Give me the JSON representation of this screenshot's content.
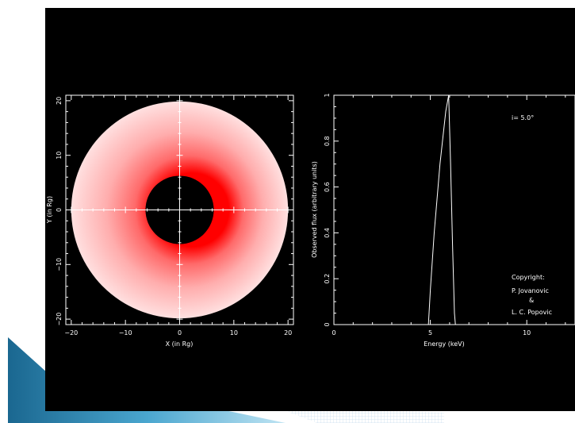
{
  "theme": {
    "background": "#000000",
    "foreground": "#ffffff",
    "disk_outer_color": "#ffe0e0",
    "disk_hot_color": "#ff0000",
    "slide_accent_dark": "#1f6f99",
    "slide_accent_light": "#9fd3ea"
  },
  "chart_data": [
    {
      "type": "heatmap",
      "description_kind": "accretion-disk-image",
      "xlabel": "X (in Rg)",
      "ylabel": "Y (in Rg)",
      "xlim": [
        -21,
        21
      ],
      "ylim": [
        -21,
        21
      ],
      "xticks": [
        -20,
        -10,
        0,
        10,
        20
      ],
      "yticks": [
        -20,
        -10,
        0,
        10,
        20
      ],
      "xtick_labels": [
        "−20",
        "−10",
        "0",
        "10",
        "20"
      ],
      "ytick_labels": [
        "−20",
        "−10",
        "0",
        "10",
        "20"
      ],
      "disk": {
        "inner_radius": 6.3,
        "outer_radius": 20,
        "center": [
          0,
          0
        ],
        "brightest_side": "+x"
      },
      "grid": false
    },
    {
      "type": "line",
      "xlabel": "Energy (keV)",
      "ylabel": "Observed flux (arbitrary units)",
      "xlim": [
        0,
        12.5
      ],
      "ylim": [
        0,
        1
      ],
      "xticks": [
        0,
        5,
        10
      ],
      "yticks": [
        0,
        0.2,
        0.4,
        0.6,
        0.8,
        1
      ],
      "xtick_labels": [
        "0",
        "5",
        "10"
      ],
      "ytick_labels": [
        "0",
        "0.2",
        "0.4",
        "0.6",
        "0.8",
        "1"
      ],
      "series": [
        {
          "x": [
            4.9,
            5.0,
            5.2,
            5.5,
            5.8,
            5.95,
            6.05,
            6.15,
            6.25,
            6.3
          ],
          "y": [
            0,
            0.15,
            0.4,
            0.7,
            0.93,
            1.0,
            0.7,
            0.35,
            0.05,
            0
          ]
        }
      ],
      "annotations": {
        "inclination": "i= 5.0°",
        "copyright": [
          "Copyright:",
          "P. Jovanovic",
          "&",
          "L. C. Popovic"
        ]
      },
      "grid": false
    }
  ]
}
